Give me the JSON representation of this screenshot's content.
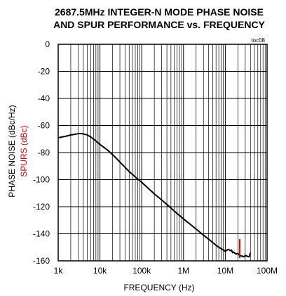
{
  "chart_data": {
    "type": "line",
    "title_lines": [
      "2687.5MHz INTEGER-N MODE PHASE NOISE",
      "AND SPUR PERFORMANCE vs. FREQUENCY"
    ],
    "corner_label": "toc08",
    "xlabel": "FREQUENCY (Hz)",
    "ylabel_lines": [
      "PHASE NOISE (dBc/Hz)",
      "SPURS (dBc)"
    ],
    "x_scale": "log",
    "xlim": [
      1000,
      100000000
    ],
    "ylim": [
      -160,
      0
    ],
    "x_ticks": [
      {
        "value": 1000,
        "label": "1k"
      },
      {
        "value": 10000,
        "label": "10k"
      },
      {
        "value": 100000,
        "label": "100k"
      },
      {
        "value": 1000000,
        "label": "1M"
      },
      {
        "value": 10000000,
        "label": "10M"
      },
      {
        "value": 100000000,
        "label": "100M"
      }
    ],
    "y_ticks": [
      {
        "value": 0,
        "label": "0"
      },
      {
        "value": -20,
        "label": "-20"
      },
      {
        "value": -40,
        "label": "-40"
      },
      {
        "value": -60,
        "label": "-60"
      },
      {
        "value": -80,
        "label": "-80"
      },
      {
        "value": -100,
        "label": "-100"
      },
      {
        "value": -120,
        "label": "-120"
      },
      {
        "value": -140,
        "label": "-140"
      },
      {
        "value": -160,
        "label": "-160"
      }
    ],
    "grid": true,
    "colors": {
      "phase_noise": "#000000",
      "spurs": "#e00000"
    },
    "series": [
      {
        "kind": "line",
        "color": "#000000",
        "x": [
          1000,
          1500,
          2000,
          2500,
          3000,
          3500,
          4000,
          5000,
          6000,
          7000,
          8000,
          10000,
          15000,
          20000,
          30000,
          50000,
          70000,
          100000,
          200000,
          300000,
          500000,
          700000,
          1000000,
          2000000,
          3000000,
          4000000,
          5000000,
          6000000,
          7000000,
          8000000,
          9000000,
          10000000,
          11000000,
          12000000,
          13000000,
          14000000,
          15000000,
          16000000,
          18000000,
          20000000,
          22000000,
          25000000,
          28000000,
          30000000,
          33000000,
          36000000,
          38000000,
          40000000
        ],
        "y": [
          -69,
          -68,
          -67,
          -66.5,
          -66,
          -66,
          -66.2,
          -67,
          -68.5,
          -70,
          -71.5,
          -74,
          -78,
          -81.5,
          -87,
          -94,
          -98,
          -102,
          -110.5,
          -115,
          -121,
          -125,
          -129,
          -136.5,
          -141,
          -144,
          -146.5,
          -148.5,
          -150,
          -151,
          -152,
          -153,
          -152,
          -151.5,
          -152.5,
          -152,
          -154,
          -153.5,
          -155,
          -154.5,
          -156,
          -156.5,
          -157,
          -156,
          -156.5,
          -157,
          -156.5,
          -154
        ]
      },
      {
        "kind": "spur",
        "color": "#e00000",
        "x": [
          22000000
        ],
        "y": [
          -144
        ],
        "base": -158
      }
    ]
  }
}
